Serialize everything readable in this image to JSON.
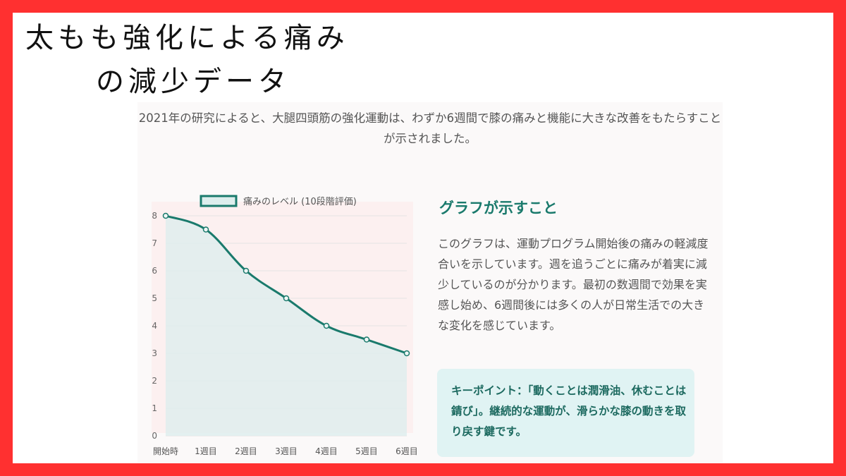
{
  "title": {
    "line1": "太もも強化による痛み",
    "line2": "の減少データ"
  },
  "intro": "2021年の研究によると、大腿四頭筋の強化運動は、わずか6週間で膝の痛みと機能に大きな改善をもたらすことが示されました。",
  "chart_data": {
    "type": "area",
    "categories": [
      "開始時",
      "1週目",
      "2週目",
      "3週目",
      "4週目",
      "5週目",
      "6週目"
    ],
    "series": [
      {
        "name": "痛みのレベル (10段階評価)",
        "values": [
          8,
          7.5,
          6,
          5,
          4,
          3.5,
          3
        ]
      }
    ],
    "ylim": [
      0,
      8
    ],
    "yticks": [
      0,
      1,
      2,
      3,
      4,
      5,
      6,
      7,
      8
    ],
    "grid": true,
    "legend": "top",
    "colors": {
      "line": "#1a7a6c",
      "fill": "#ddeeed"
    }
  },
  "explanation": {
    "heading": "グラフが示すこと",
    "body": "このグラフは、運動プログラム開始後の痛みの軽減度合いを示しています。週を追うごとに痛みが着実に減少しているのが分かります。最初の数週間で効果を実感し始め、6週間後には多くの人が日常生活での大きな変化を感じています。"
  },
  "keypoint": "キーポイント：「動くことは潤滑油、休むことは錆び」。継続的な運動が、滑らかな膝の動きを取り戻す鍵です。",
  "colors": {
    "frame": "#ff3030",
    "accent": "#1a7a6c",
    "keypoint_bg": "#e0f3f3"
  }
}
